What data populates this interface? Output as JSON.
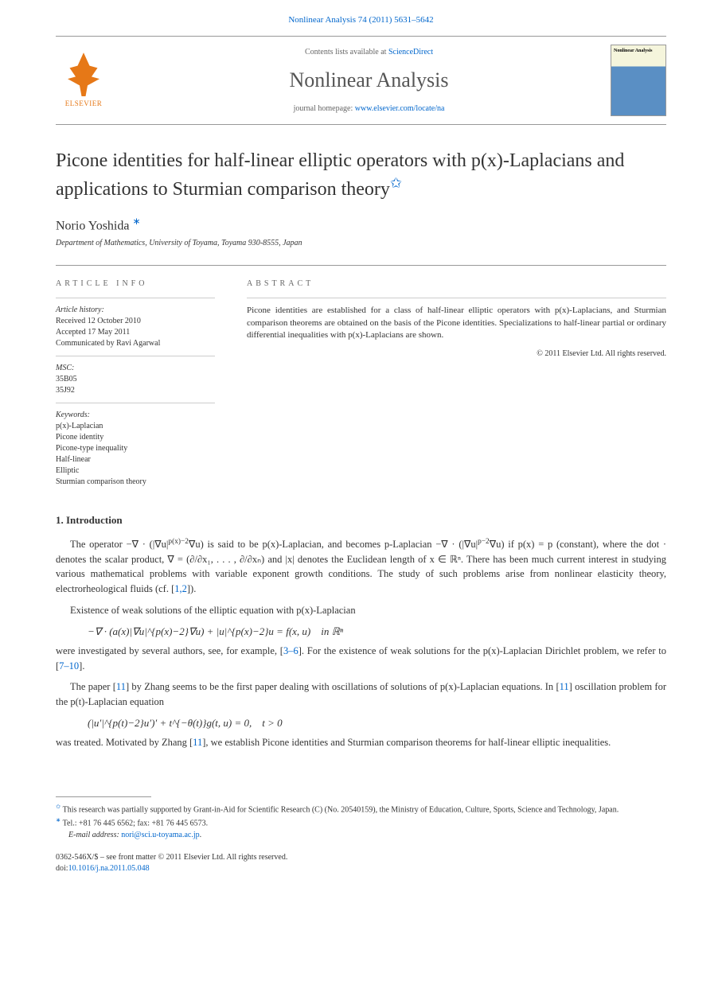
{
  "citation": "Nonlinear Analysis 74 (2011) 5631–5642",
  "header": {
    "contents_prefix": "Contents lists available at ",
    "contents_link": "ScienceDirect",
    "journal": "Nonlinear Analysis",
    "homepage_prefix": "journal homepage: ",
    "homepage_link": "www.elsevier.com/locate/na",
    "publisher": "ELSEVIER"
  },
  "title": "Picone identities for half-linear elliptic operators with p(x)-Laplacians and applications to Sturmian comparison theory",
  "author": "Norio Yoshida",
  "affiliation": "Department of Mathematics, University of Toyama, Toyama 930-8555, Japan",
  "info": {
    "heading": "ARTICLE INFO",
    "history_label": "Article history:",
    "received": "Received 12 October 2010",
    "accepted": "Accepted 17 May 2011",
    "communicated": "Communicated by Ravi Agarwal",
    "msc_label": "MSC:",
    "msc1": "35B05",
    "msc2": "35J92",
    "keywords_label": "Keywords:",
    "kw1": "p(x)-Laplacian",
    "kw2": "Picone identity",
    "kw3": "Picone-type inequality",
    "kw4": "Half-linear",
    "kw5": "Elliptic",
    "kw6": "Sturmian comparison theory"
  },
  "abstract": {
    "heading": "ABSTRACT",
    "text": "Picone identities are established for a class of half-linear elliptic operators with p(x)-Laplacians, and Sturmian comparison theorems are obtained on the basis of the Picone identities. Specializations to half-linear partial or ordinary differential inequalities with p(x)-Laplacians are shown.",
    "copyright": "© 2011 Elsevier Ltd. All rights reserved."
  },
  "section1": {
    "heading": "1. Introduction",
    "para1_a": "The operator −∇ · (|∇u|",
    "para1_b": "∇u) is said to be p(x)-Laplacian, and becomes p-Laplacian −∇ · (|∇u|",
    "para1_c": "∇u) if p(x) = p (constant), where the dot · denotes the scalar product, ∇ = (∂/∂x₁, . . . , ∂/∂xₙ) and |x| denotes the Euclidean length of x ∈ ℝⁿ. There has been much current interest in studying various mathematical problems with variable exponent growth conditions. The study of such problems arise from nonlinear elasticity theory, electrorheological fluids (cf. [",
    "ref1": "1,2",
    "para1_d": "]).",
    "para2": "Existence of weak solutions of the elliptic equation with p(x)-Laplacian",
    "eq1": "−∇ · (a(x)|∇u|^{p(x)−2}∇u) + |u|^{p(x)−2}u = f(x, u) in ℝⁿ",
    "para3_a": "were investigated by several authors, see, for example, [",
    "ref2": "3–6",
    "para3_b": "]. For the existence of weak solutions for the p(x)-Laplacian Dirichlet problem, we refer to [",
    "ref3": "7–10",
    "para3_c": "].",
    "para4_a": "The paper [",
    "ref4": "11",
    "para4_b": "] by Zhang seems to be the first paper dealing with oscillations of solutions of p(x)-Laplacian equations. In [",
    "ref5": "11",
    "para4_c": "] oscillation problem for the p(t)-Laplacian equation",
    "eq2": "(|u′|^{p(t)−2}u′)′ + t^{−θ(t)}g(t, u) = 0, t > 0",
    "para5_a": "was treated. Motivated by Zhang [",
    "ref6": "11",
    "para5_b": "], we establish Picone identities and Sturmian comparison theorems for half-linear elliptic inequalities."
  },
  "footnotes": {
    "fn1": "This research was partially supported by Grant-in-Aid for Scientific Research (C) (No. 20540159), the Ministry of Education, Culture, Sports, Science and Technology, Japan.",
    "fn2_a": "Tel.: +81 76 445 6562; fax: +81 76 445 6573.",
    "fn2_label": "E-mail address: ",
    "fn2_email": "nori@sci.u-toyama.ac.jp"
  },
  "footer": {
    "line1": "0362-546X/$ – see front matter © 2011 Elsevier Ltd. All rights reserved.",
    "doi_label": "doi:",
    "doi": "10.1016/j.na.2011.05.048"
  },
  "colors": {
    "link": "#0066cc",
    "elsevier": "#e67817",
    "text": "#333333",
    "border": "#999999"
  }
}
